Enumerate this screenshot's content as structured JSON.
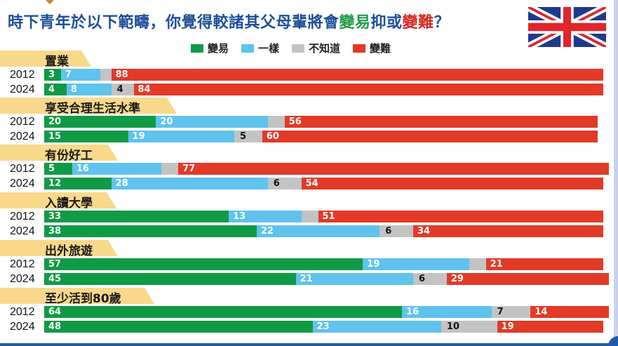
{
  "title": {
    "part1": "時下青年於以下範疇，你覺得較諸其父母輩將會",
    "easier": "變易",
    "middle": "抑或",
    "harder": "變難",
    "end": "？"
  },
  "legend": [
    {
      "label": "變易",
      "color": "#109a45"
    },
    {
      "label": "一樣",
      "color": "#5fc3ee"
    },
    {
      "label": "不知道",
      "color": "#c3c3c3"
    },
    {
      "label": "變難",
      "color": "#e23a27"
    }
  ],
  "flag_icon": "uk-flag-icon",
  "chart_data": {
    "type": "bar",
    "orientation": "horizontal-stacked-100",
    "title": "時下青年於以下範疇，你覺得較諸其父母輩將會變易抑或變難？",
    "series_names": [
      "變易",
      "一樣",
      "不知道",
      "變難"
    ],
    "colors": [
      "#109a45",
      "#5fc3ee",
      "#c3c3c3",
      "#e23a27"
    ],
    "groups": [
      {
        "category": "置業",
        "rows": [
          {
            "year": "2012",
            "values": [
              3,
              7,
              2,
              88
            ],
            "labels": [
              "3",
              "7",
              "",
              "88"
            ]
          },
          {
            "year": "2024",
            "values": [
              4,
              8,
              4,
              84
            ],
            "labels": [
              "4",
              "8",
              "4",
              "84"
            ]
          }
        ]
      },
      {
        "category": "享受合理生活水準",
        "rows": [
          {
            "year": "2012",
            "values": [
              20,
              20,
              3,
              56
            ],
            "labels": [
              "20",
              "20",
              "",
              "56"
            ]
          },
          {
            "year": "2024",
            "values": [
              15,
              19,
              5,
              60
            ],
            "labels": [
              "15",
              "19",
              "5",
              "60"
            ]
          }
        ]
      },
      {
        "category": "有份好工",
        "rows": [
          {
            "year": "2012",
            "values": [
              5,
              16,
              3,
              77
            ],
            "labels": [
              "5",
              "16",
              "",
              "77"
            ]
          },
          {
            "year": "2024",
            "values": [
              12,
              28,
              6,
              54
            ],
            "labels": [
              "12",
              "28",
              "6",
              "54"
            ]
          }
        ]
      },
      {
        "category": "入讀大學",
        "rows": [
          {
            "year": "2012",
            "values": [
              33,
              13,
              3,
              51
            ],
            "labels": [
              "33",
              "13",
              "",
              "51"
            ]
          },
          {
            "year": "2024",
            "values": [
              38,
              22,
              6,
              34
            ],
            "labels": [
              "38",
              "22",
              "6",
              "34"
            ]
          }
        ]
      },
      {
        "category": "出外旅遊",
        "rows": [
          {
            "year": "2012",
            "values": [
              57,
              19,
              3,
              21
            ],
            "labels": [
              "57",
              "19",
              "",
              "21"
            ]
          },
          {
            "year": "2024",
            "values": [
              45,
              21,
              6,
              29
            ],
            "labels": [
              "45",
              "21",
              "6",
              "29"
            ]
          }
        ]
      },
      {
        "category": "至少活到80歲",
        "rows": [
          {
            "year": "2012",
            "values": [
              64,
              16,
              7,
              14
            ],
            "labels": [
              "64",
              "16",
              "7",
              "14"
            ]
          },
          {
            "year": "2024",
            "values": [
              48,
              23,
              10,
              19
            ],
            "labels": [
              "48",
              "23",
              "10",
              "19"
            ]
          }
        ]
      }
    ],
    "xlim": [
      0,
      100
    ],
    "grid": false,
    "legend_position": "top"
  }
}
